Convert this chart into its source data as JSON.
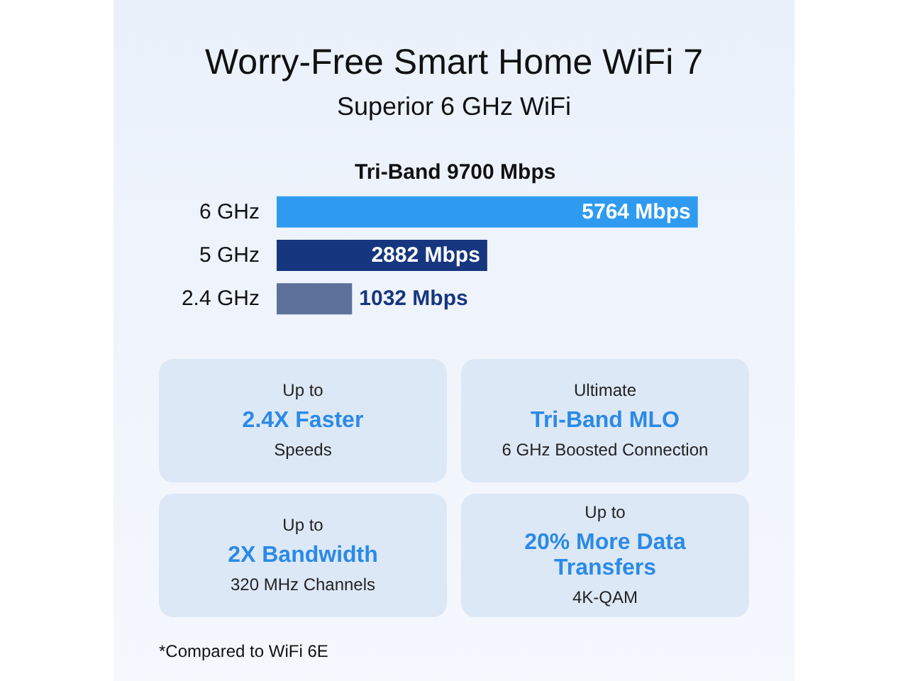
{
  "chart_data": {
    "type": "bar",
    "orientation": "horizontal",
    "title": "Worry-Free Smart Home WiFi 7",
    "subtitle": "Superior 6 GHz WiFi",
    "categories": [
      "6 GHz",
      "5 GHz",
      "2.4 GHz"
    ],
    "values": [
      5764,
      2882,
      1032
    ],
    "colors": [
      "#2f9bf0",
      "#16367f",
      "#5d7099"
    ],
    "value_labels": [
      "5764 Mbps",
      "2882 Mbps",
      "1032 Mbps"
    ],
    "grid": false,
    "annotations": [
      "Tri-Band 9700 Mbps",
      "Up to\n2.4X Faster\nSpeeds",
      "Ultimate\nTri-Band MLO\n6 GHz Boosted Connection",
      "Up to\n2X Bandwidth\n320 MHz Channels",
      "Up to\n20% More Data\nTransfers\n4K-QAM",
      "*Compared to WiFi 6E"
    ]
  }
}
